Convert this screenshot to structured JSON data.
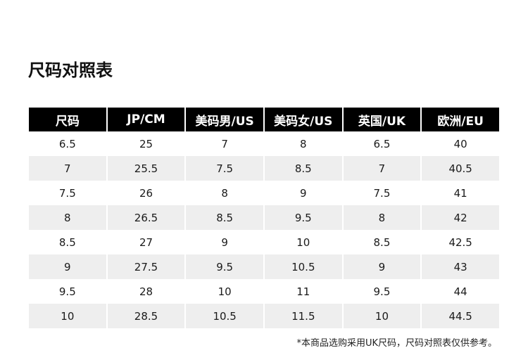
{
  "title": "尺码对照表",
  "table": {
    "headers": [
      "尺码",
      "JP/CM",
      "美码男/US",
      "美码女/US",
      "英国/UK",
      "欧洲/EU"
    ],
    "rows": [
      [
        "6.5",
        "25",
        "7",
        "8",
        "6.5",
        "40"
      ],
      [
        "7",
        "25.5",
        "7.5",
        "8.5",
        "7",
        "40.5"
      ],
      [
        "7.5",
        "26",
        "8",
        "9",
        "7.5",
        "41"
      ],
      [
        "8",
        "26.5",
        "8.5",
        "9.5",
        "8",
        "42"
      ],
      [
        "8.5",
        "27",
        "9",
        "10",
        "8.5",
        "42.5"
      ],
      [
        "9",
        "27.5",
        "9.5",
        "10.5",
        "9",
        "43"
      ],
      [
        "9.5",
        "28",
        "10",
        "11",
        "9.5",
        "44"
      ],
      [
        "10",
        "28.5",
        "10.5",
        "11.5",
        "10",
        "44.5"
      ]
    ]
  },
  "footnote": "*本商品选购采用UK尺码，尺码对照表仅供参考。",
  "colors": {
    "header_bg": "#000000",
    "header_text": "#ffffff",
    "stripe_bg": "#eeeeee"
  }
}
